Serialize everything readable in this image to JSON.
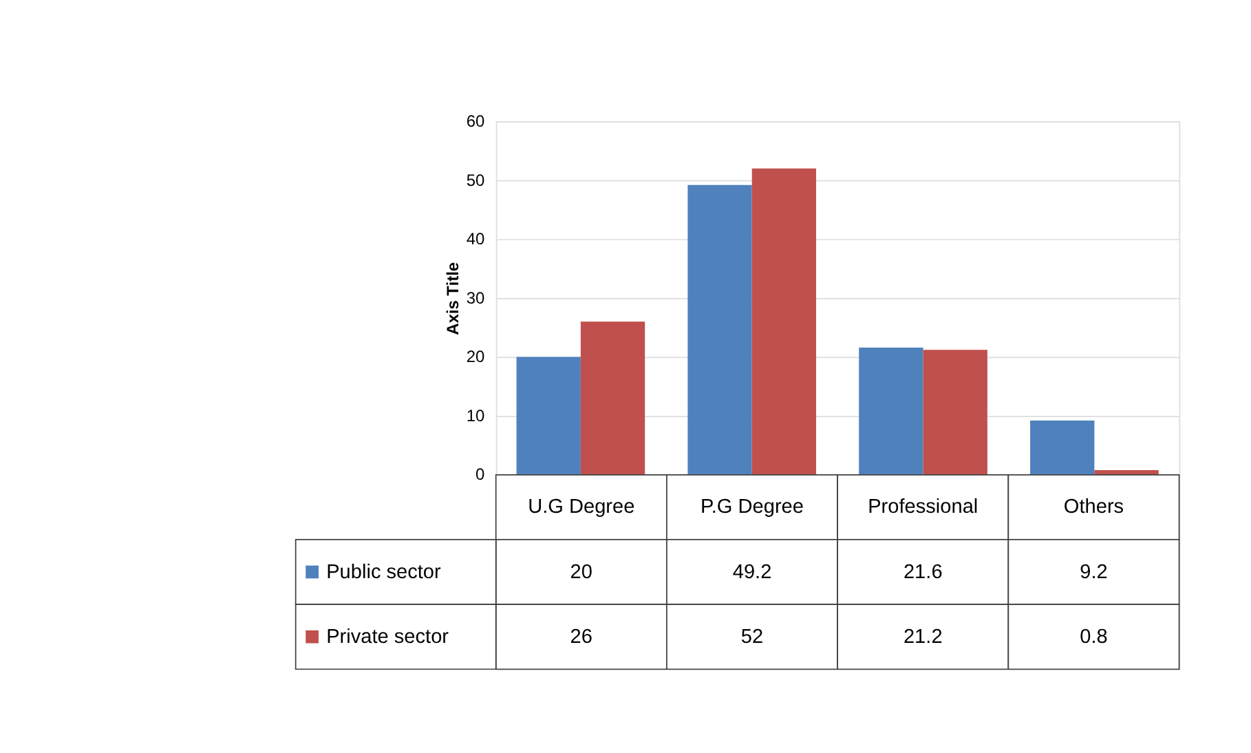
{
  "chart_data": {
    "type": "bar",
    "ylabel": "Axis Title",
    "categories": [
      "U.G Degree",
      "P.G Degree",
      "Professional",
      "Others"
    ],
    "series": [
      {
        "name": "Public sector",
        "color": "#4f81bd",
        "values": [
          20,
          49.2,
          21.6,
          9.2
        ]
      },
      {
        "name": "Private sector",
        "color": "#c0504d",
        "values": [
          26,
          52,
          21.2,
          0.8
        ]
      }
    ],
    "ylim": [
      0,
      60
    ],
    "yticks": [
      0,
      10,
      20,
      30,
      40,
      50,
      60
    ],
    "grid": "y",
    "legend": "bottom left",
    "data_labels": true
  }
}
